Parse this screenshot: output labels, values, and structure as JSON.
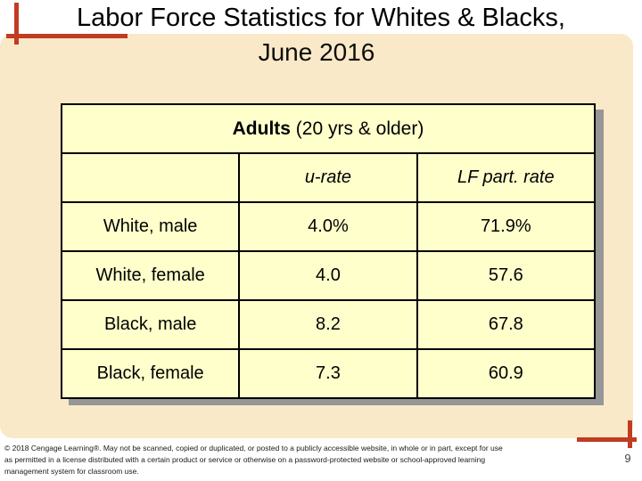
{
  "slide": {
    "title_line1": "Labor Force Statistics for Whites & Blacks,",
    "title_line2": "June 2016",
    "page_number": "9",
    "footer_lines": [
      "© 2018 Cengage Learning®. May not be scanned, copied or duplicated, or posted to a publicly accessible website, in whole or in part, except for use",
      "as permitted in a license distributed with a certain product or service or otherwise on a password-protected website or school-approved learning",
      "management system for classroom use."
    ]
  },
  "table": {
    "header_bold": "Adults",
    "header_rest": " (20 yrs & older)",
    "columns": [
      "",
      "u-rate",
      "LF part. rate"
    ],
    "rows": [
      {
        "label": "White, male",
        "u_rate": "4.0%",
        "lf_rate": "71.9%"
      },
      {
        "label": "White, female",
        "u_rate": "4.0",
        "lf_rate": "57.6"
      },
      {
        "label": "Black, male",
        "u_rate": "8.2",
        "lf_rate": "67.8"
      },
      {
        "label": "Black, female",
        "u_rate": "7.3",
        "lf_rate": "60.9"
      }
    ]
  },
  "colors": {
    "accent_red": "#c23b22",
    "panel_bg": "#fae9c8",
    "table_bg": "#ffffcc",
    "shadow": "#969696",
    "text": "#000000"
  }
}
